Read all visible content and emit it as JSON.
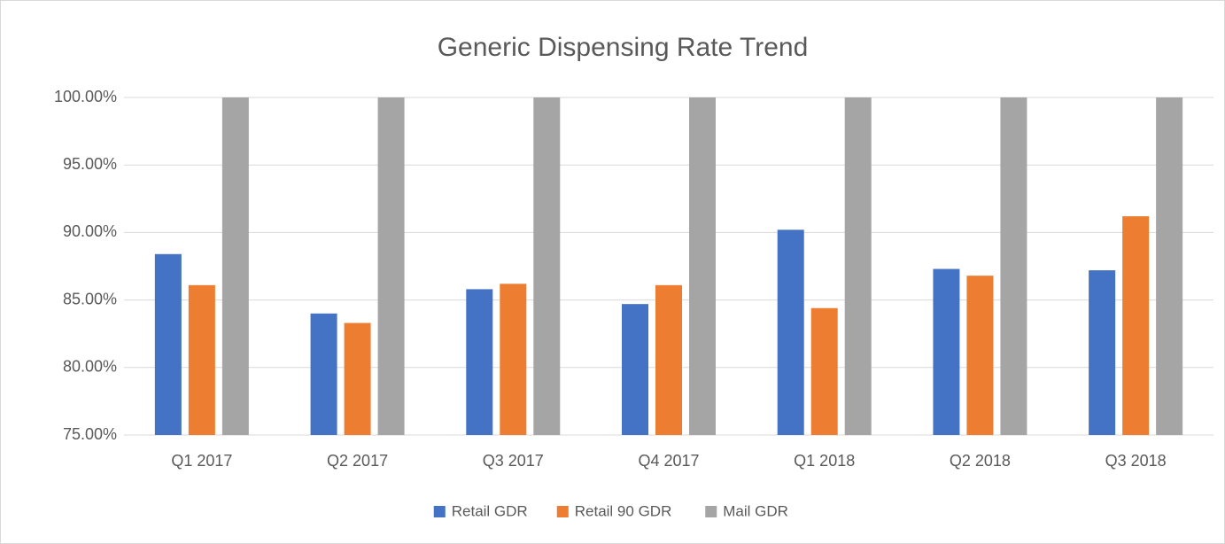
{
  "chart_data": {
    "type": "bar",
    "title": "Generic Dispensing Rate Trend",
    "categories": [
      "Q1 2017",
      "Q2 2017",
      "Q3 2017",
      "Q4 2017",
      "Q1 2018",
      "Q2 2018",
      "Q3 2018"
    ],
    "series": [
      {
        "name": "Retail GDR",
        "color": "#4472c4",
        "values": [
          88.4,
          84.0,
          85.8,
          84.7,
          90.2,
          87.3,
          87.2
        ]
      },
      {
        "name": "Retail 90 GDR",
        "color": "#ed7d31",
        "values": [
          86.1,
          83.3,
          86.2,
          86.1,
          84.4,
          86.8,
          91.2
        ]
      },
      {
        "name": "Mail GDR",
        "color": "#a5a5a5",
        "values": [
          100,
          100,
          100,
          100,
          100,
          100,
          100
        ]
      }
    ],
    "ylim": [
      75,
      100
    ],
    "yticks": [
      {
        "value": 75,
        "label": "75.00%"
      },
      {
        "value": 80,
        "label": "80.00%"
      },
      {
        "value": 85,
        "label": "85.00%"
      },
      {
        "value": 90,
        "label": "90.00%"
      },
      {
        "value": 95,
        "label": "95.00%"
      },
      {
        "value": 100,
        "label": "100.00%"
      }
    ],
    "grid": true,
    "legend": "bottom"
  }
}
